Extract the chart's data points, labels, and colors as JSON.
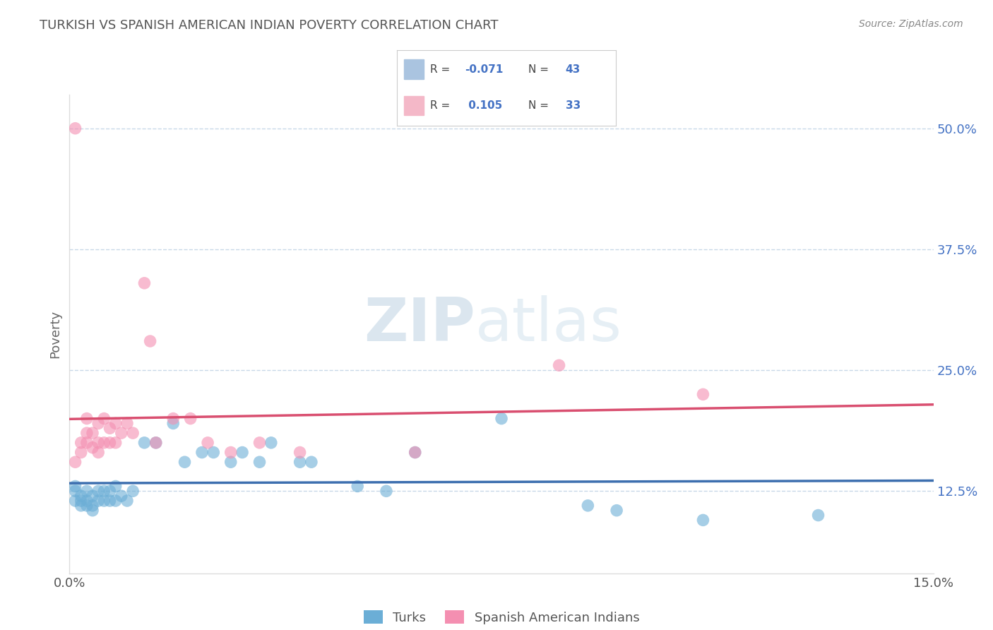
{
  "title": "TURKISH VS SPANISH AMERICAN INDIAN POVERTY CORRELATION CHART",
  "source": "Source: ZipAtlas.com",
  "ylabel_right_ticks": [
    0.125,
    0.25,
    0.375,
    0.5
  ],
  "ylabel_right_labels": [
    "12.5%",
    "25.0%",
    "37.5%",
    "50.0%"
  ],
  "ylabel_label": "Poverty",
  "xmin": 0.0,
  "xmax": 0.15,
  "ymin": 0.04,
  "ymax": 0.535,
  "blue_scatter_color": "#6baed6",
  "pink_scatter_color": "#f48fb1",
  "blue_line_color": "#3d6faf",
  "pink_line_color": "#d94f70",
  "watermark_zip": "ZIP",
  "watermark_atlas": "atlas",
  "turks_x": [
    0.001,
    0.001,
    0.001,
    0.002,
    0.002,
    0.002,
    0.003,
    0.003,
    0.003,
    0.004,
    0.004,
    0.004,
    0.005,
    0.005,
    0.006,
    0.006,
    0.007,
    0.007,
    0.008,
    0.008,
    0.009,
    0.01,
    0.011,
    0.013,
    0.015,
    0.018,
    0.02,
    0.023,
    0.025,
    0.028,
    0.03,
    0.033,
    0.035,
    0.04,
    0.042,
    0.05,
    0.055,
    0.06,
    0.075,
    0.09,
    0.095,
    0.11,
    0.13
  ],
  "turks_y": [
    0.13,
    0.125,
    0.115,
    0.12,
    0.115,
    0.11,
    0.125,
    0.115,
    0.11,
    0.12,
    0.11,
    0.105,
    0.125,
    0.115,
    0.125,
    0.115,
    0.125,
    0.115,
    0.13,
    0.115,
    0.12,
    0.115,
    0.125,
    0.175,
    0.175,
    0.195,
    0.155,
    0.165,
    0.165,
    0.155,
    0.165,
    0.155,
    0.175,
    0.155,
    0.155,
    0.13,
    0.125,
    0.165,
    0.2,
    0.11,
    0.105,
    0.095,
    0.1
  ],
  "spanish_x": [
    0.001,
    0.001,
    0.002,
    0.002,
    0.003,
    0.003,
    0.003,
    0.004,
    0.004,
    0.005,
    0.005,
    0.005,
    0.006,
    0.006,
    0.007,
    0.007,
    0.008,
    0.008,
    0.009,
    0.01,
    0.011,
    0.013,
    0.014,
    0.015,
    0.018,
    0.021,
    0.024,
    0.028,
    0.033,
    0.04,
    0.06,
    0.085,
    0.11
  ],
  "spanish_y": [
    0.5,
    0.155,
    0.175,
    0.165,
    0.2,
    0.185,
    0.175,
    0.185,
    0.17,
    0.195,
    0.175,
    0.165,
    0.2,
    0.175,
    0.19,
    0.175,
    0.195,
    0.175,
    0.185,
    0.195,
    0.185,
    0.34,
    0.28,
    0.175,
    0.2,
    0.2,
    0.175,
    0.165,
    0.175,
    0.165,
    0.165,
    0.255,
    0.225
  ],
  "background_color": "#ffffff",
  "grid_color": "#c8d8e8",
  "legend_box_color": "#f0f4f8",
  "legend_border_color": "#cccccc"
}
